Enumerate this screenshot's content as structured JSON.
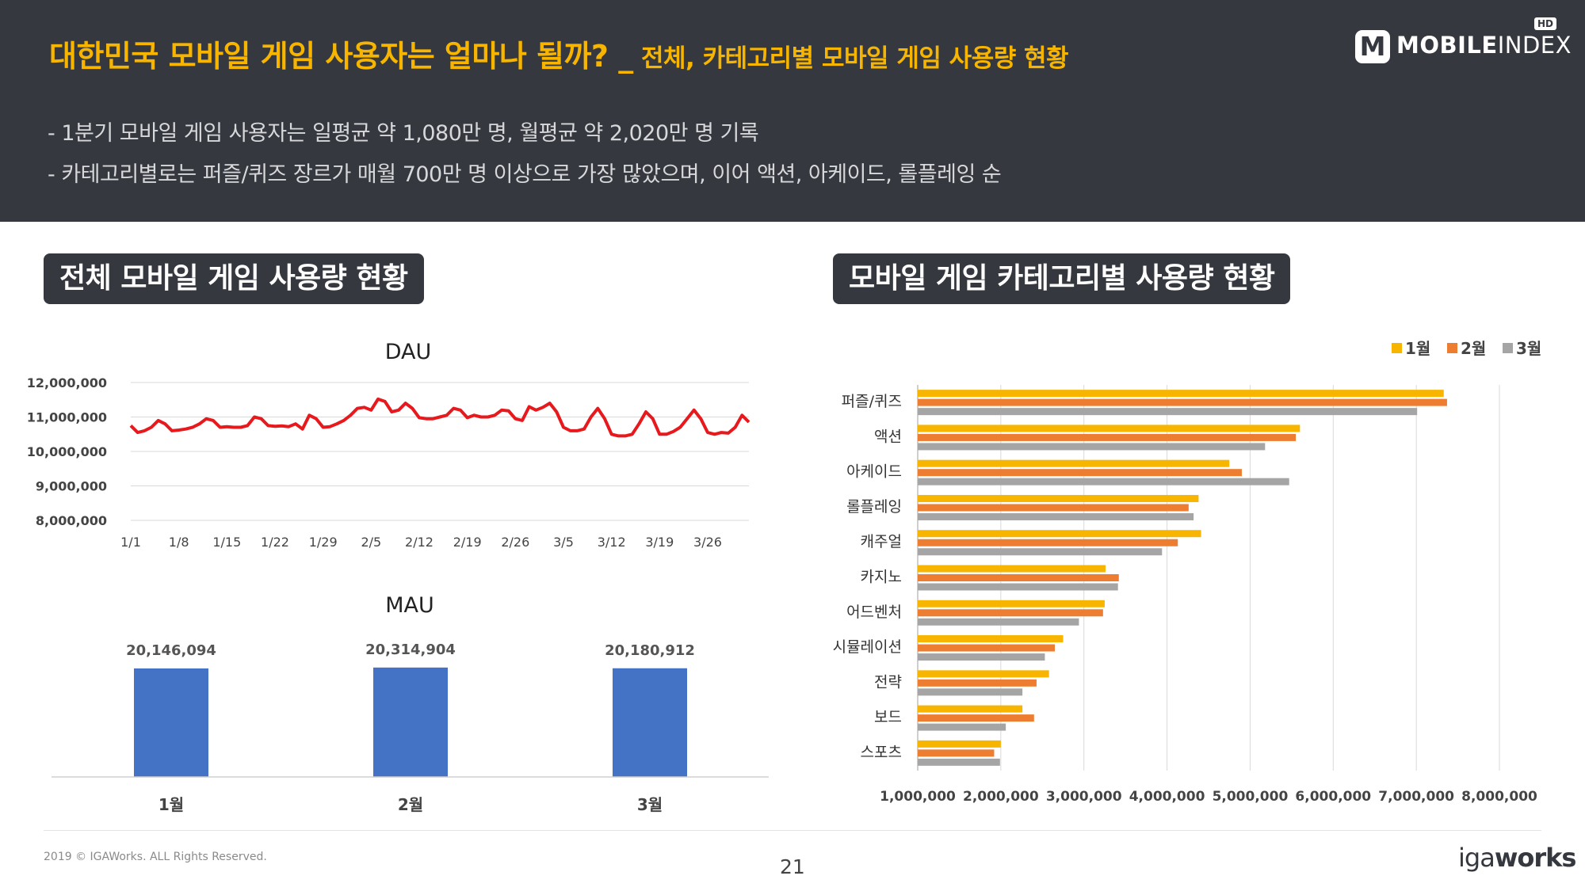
{
  "header": {
    "title": "대한민국 모바일 게임 사용자는 얼마나 될까? _",
    "subtitle": " 전체, 카테고리별 모바일 게임 사용량 현황",
    "bullets": [
      "- 1분기 모바일 게임 사용자는 일평균 약 1,080만 명, 월평균 약 2,020만 명  기록",
      "- 카테고리별로는 퍼즐/퀴즈 장르가 매월 700만 명 이상으로 가장 많았으며, 이어 액션, 아케이드, 롤플레잉 순"
    ],
    "logo": {
      "mark": "M",
      "bold": "MOBILE",
      "light": "INDEX",
      "badge": "HD"
    }
  },
  "sections": {
    "left_title": "전체 모바일 게임 사용량 현황",
    "right_title": "모바일 게임 카테고리별 사용량 현황"
  },
  "footer": {
    "copyright": "2019 © IGAWorks. ALL Rights Reserved.",
    "page": "21",
    "brand_ig": "iga",
    "brand_works": "works"
  },
  "colors": {
    "header_bg": "#35383f",
    "title_accent": "#f7b500",
    "dau_line": "#e8191d",
    "mau_bar": "#4472c4",
    "jan": "#f7b500",
    "feb": "#ed7d31",
    "mar": "#a5a5a5"
  },
  "chart_data": [
    {
      "type": "line",
      "title": "DAU",
      "ylim": [
        8000000,
        12000000
      ],
      "yticks": [
        "12,000,000",
        "11,000,000",
        "10,000,000",
        "9,000,000",
        "8,000,000"
      ],
      "xticks": [
        "1/1",
        "1/8",
        "1/15",
        "1/22",
        "1/29",
        "2/5",
        "2/12",
        "2/19",
        "2/26",
        "3/5",
        "3/12",
        "3/19",
        "3/26"
      ],
      "grid": true,
      "values": [
        10750000,
        10550000,
        10600000,
        10700000,
        10900000,
        10800000,
        10600000,
        10620000,
        10650000,
        10700000,
        10800000,
        10950000,
        10900000,
        10700000,
        10720000,
        10700000,
        10700000,
        10750000,
        11000000,
        10950000,
        10750000,
        10730000,
        10740000,
        10720000,
        10800000,
        10650000,
        11050000,
        10950000,
        10700000,
        10720000,
        10800000,
        10900000,
        11050000,
        11250000,
        11280000,
        11200000,
        11520000,
        11450000,
        11150000,
        11200000,
        11400000,
        11250000,
        10980000,
        10950000,
        10950000,
        11000000,
        11050000,
        11250000,
        11200000,
        10980000,
        11050000,
        11000000,
        11000000,
        11050000,
        11200000,
        11180000,
        10950000,
        10900000,
        11300000,
        11200000,
        11280000,
        11400000,
        11150000,
        10700000,
        10600000,
        10600000,
        10650000,
        11000000,
        11250000,
        10950000,
        10500000,
        10450000,
        10450000,
        10500000,
        10800000,
        11150000,
        10950000,
        10500000,
        10500000,
        10580000,
        10700000,
        10950000,
        11200000,
        10950000,
        10550000,
        10500000,
        10550000,
        10530000,
        10700000,
        11050000,
        10850000
      ]
    },
    {
      "type": "bar",
      "title": "MAU",
      "categories": [
        "1월",
        "2월",
        "3월"
      ],
      "values": [
        20146094,
        20314904,
        20180912
      ],
      "value_labels": [
        "20,146,094",
        "20,314,904",
        "20,180,912"
      ]
    },
    {
      "type": "bar",
      "orientation": "horizontal",
      "categories": [
        "퍼즐/퀴즈",
        "액션",
        "아케이드",
        "롤플레잉",
        "캐주얼",
        "카지노",
        "어드벤처",
        "시뮬레이션",
        "전략",
        "보드",
        "스포츠"
      ],
      "xticks": [
        "1,000,000",
        "2,000,000",
        "3,000,000",
        "4,000,000",
        "5,000,000",
        "6,000,000",
        "7,000,000",
        "8,000,000"
      ],
      "xlim": [
        1000000,
        8000000
      ],
      "grid": true,
      "legend": "top-right",
      "series": [
        {
          "name": "1월",
          "values": [
            7330000,
            5600000,
            4750000,
            4380000,
            4410000,
            3260000,
            3250000,
            2750000,
            2580000,
            2260000,
            2000000
          ]
        },
        {
          "name": "2월",
          "values": [
            7370000,
            5550000,
            4900000,
            4260000,
            4130000,
            3420000,
            3230000,
            2650000,
            2430000,
            2400000,
            1920000
          ]
        },
        {
          "name": "3월",
          "values": [
            7010000,
            5180000,
            5470000,
            4320000,
            3940000,
            3410000,
            2940000,
            2530000,
            2260000,
            2060000,
            1990000
          ]
        }
      ]
    }
  ]
}
